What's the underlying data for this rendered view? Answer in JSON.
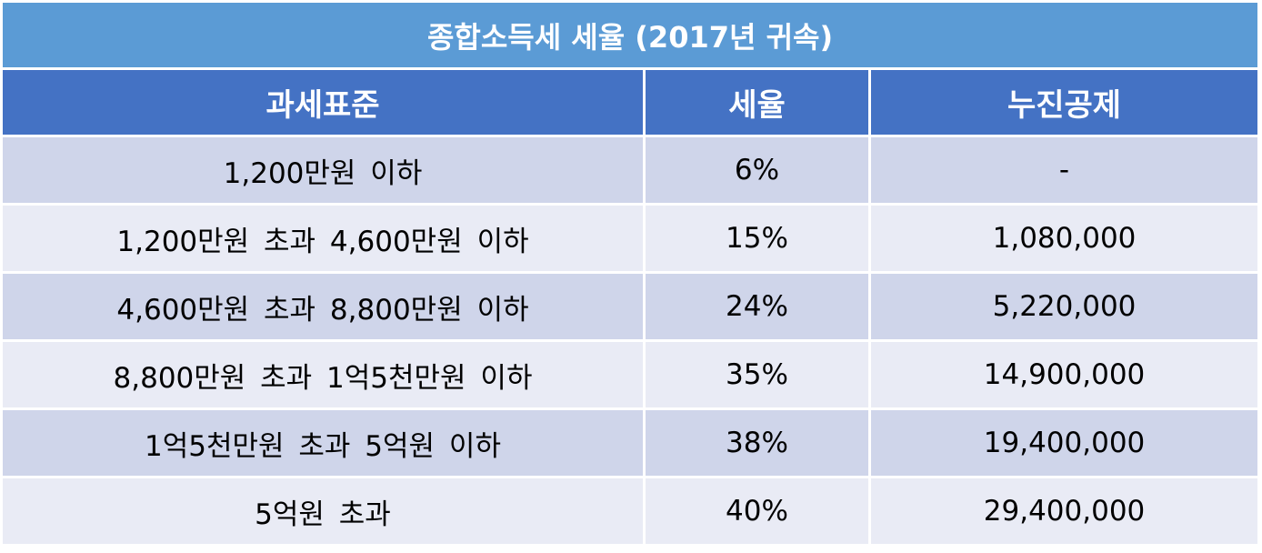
{
  "table": {
    "title": "종합소득세 세율 (2017년 귀속)",
    "headers": [
      "과세표준",
      "세율",
      "누진공제"
    ],
    "rows": [
      [
        "1,200만원 이하",
        "6%",
        "-"
      ],
      [
        "1,200만원 초과 4,600만원 이하",
        "15%",
        "1,080,000"
      ],
      [
        "4,600만원 초과 8,800만원 이하",
        "24%",
        "5,220,000"
      ],
      [
        "8,800만원 초과 1억5천만원 이하",
        "35%",
        "14,900,000"
      ],
      [
        "1억5천만원 초과 5억원 이하",
        "38%",
        "19,400,000"
      ],
      [
        "5억원 초과",
        "40%",
        "29,400,000"
      ]
    ]
  },
  "colors": {
    "title_bg": "#5b9bd5",
    "header_bg": "#4472c4",
    "row_odd_bg": "#cfd5ea",
    "row_even_bg": "#e9ebf5"
  }
}
